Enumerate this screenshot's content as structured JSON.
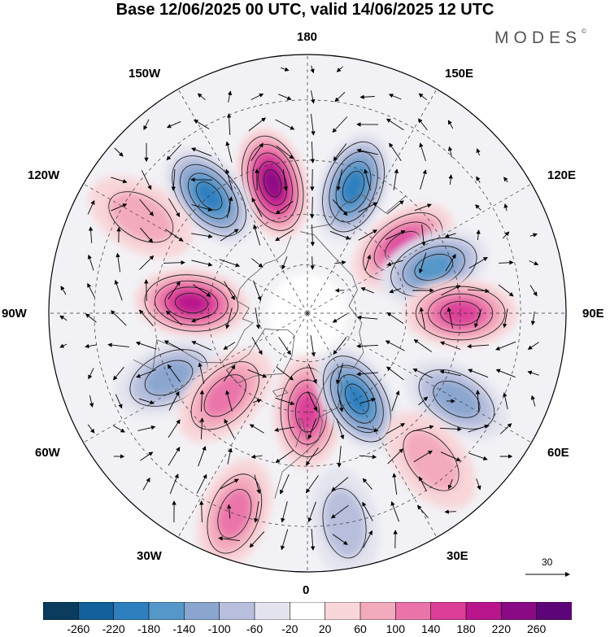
{
  "header": {
    "title": "Base 12/06/2025 00 UTC, valid 14/06/2025 12 UTC",
    "brand": "MODES",
    "brand_mark": "©"
  },
  "map": {
    "projection": "north-polar-stereographic",
    "longitude_labels": {
      "lon_180": "180",
      "lon_150w": "150W",
      "lon_150e": "150E",
      "lon_120w": "120W",
      "lon_120e": "120E",
      "lon_90w": "90W",
      "lon_90e": "90E",
      "lon_60w": "60W",
      "lon_60e": "60E",
      "lon_30w": "30W",
      "lon_30e": "30E",
      "lon_0": "0"
    },
    "reference_vector": "30",
    "anomaly_centers": [
      {
        "sign": "positive",
        "lon": -165,
        "lat": 50,
        "strength": 230
      },
      {
        "sign": "negative",
        "lon": 160,
        "lat": 50,
        "strength": -200
      },
      {
        "sign": "negative",
        "lon": -140,
        "lat": 45,
        "strength": -210
      },
      {
        "sign": "positive",
        "lon": 125,
        "lat": 55,
        "strength": 150
      },
      {
        "sign": "negative",
        "lon": 110,
        "lat": 50,
        "strength": -160
      },
      {
        "sign": "positive",
        "lon": 90,
        "lat": 45,
        "strength": 140
      },
      {
        "sign": "positive",
        "lon": -95,
        "lat": 55,
        "strength": 200
      },
      {
        "sign": "negative",
        "lon": -65,
        "lat": 45,
        "strength": -120
      },
      {
        "sign": "positive",
        "lon": -45,
        "lat": 55,
        "strength": 100
      },
      {
        "sign": "positive",
        "lon": 0,
        "lat": 60,
        "strength": 170
      },
      {
        "sign": "negative",
        "lon": 30,
        "lat": 60,
        "strength": -200
      },
      {
        "sign": "negative",
        "lon": 60,
        "lat": 40,
        "strength": -100
      },
      {
        "sign": "positive",
        "lon": -20,
        "lat": 30,
        "strength": 120
      },
      {
        "sign": "positive",
        "lon": 40,
        "lat": 35,
        "strength": 70
      },
      {
        "sign": "positive",
        "lon": -120,
        "lat": 35,
        "strength": 80
      },
      {
        "sign": "negative",
        "lon": 10,
        "lat": 30,
        "strength": -80
      }
    ]
  },
  "colorbar": {
    "labels": [
      "-260",
      "-220",
      "-180",
      "-140",
      "-100",
      "-60",
      "-20",
      "20",
      "60",
      "100",
      "140",
      "180",
      "220",
      "260"
    ],
    "colors": [
      "#0b3c5d",
      "#13609a",
      "#2e7fbf",
      "#5597c9",
      "#8aa6cf",
      "#b8bfdd",
      "#e4e4ef",
      "#ffffff",
      "#f8d6d9",
      "#f3aabd",
      "#ea74aa",
      "#dc3f98",
      "#b9168d",
      "#8a0a86",
      "#5c0578"
    ]
  }
}
